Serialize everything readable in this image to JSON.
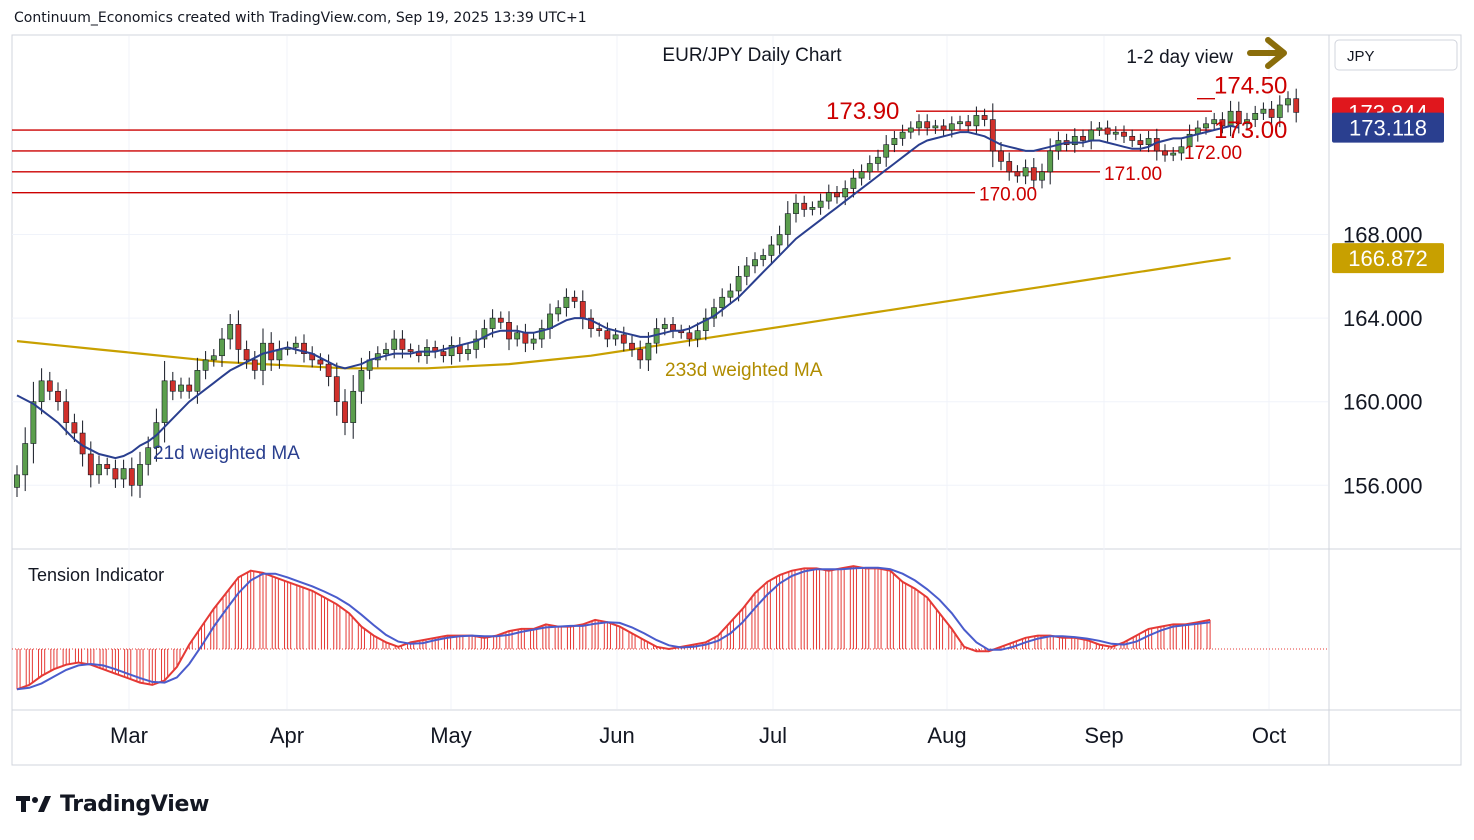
{
  "header": {
    "created_by": "Continuum_Economics created with TradingView.com, Sep 19, 2025 13:39 UTC+1"
  },
  "brand": {
    "name": "TradingView"
  },
  "colors": {
    "up": "#5b9e4d",
    "down": "#d0302b",
    "wick": "#131722",
    "level": "#cc0000",
    "ma21": "#2a3f8f",
    "ma233": "#c8a000",
    "tension_hist": "#e53935",
    "tension_line": "#e53935",
    "tension_signal": "#4a5ccc",
    "current_price_bg": "#e0171d",
    "ma21_badge_bg": "#2a3f8f",
    "ma233_badge_bg": "#c8a000"
  },
  "chart_data": {
    "type": "candlestick",
    "title": "EUR/JPY Daily Chart",
    "annotation": "1-2 day view",
    "currency": "JPY",
    "ylim": [
      153.0,
      177.5
    ],
    "y_ticks": [
      156.0,
      160.0,
      164.0,
      168.0
    ],
    "y_tick_labels": [
      "156.000",
      "160.000",
      "164.000",
      "168.000"
    ],
    "x_labels": [
      "Mar",
      "Apr",
      "May",
      "Jun",
      "Jul",
      "Aug",
      "Sep",
      "Oct"
    ],
    "levels": [
      {
        "value": 174.5,
        "label": "174.50"
      },
      {
        "value": 173.9,
        "label": "173.90"
      },
      {
        "value": 173.0,
        "label": "173.00"
      },
      {
        "value": 172.0,
        "label": "172.00"
      },
      {
        "value": 171.0,
        "label": "171.00"
      },
      {
        "value": 170.0,
        "label": "170.00"
      }
    ],
    "price_badges": [
      {
        "name": "current",
        "value": 173.844,
        "label": "173.844"
      },
      {
        "name": "ma21",
        "value": 173.118,
        "label": "173.118"
      },
      {
        "name": "ma233",
        "value": 166.872,
        "label": "166.872"
      }
    ],
    "series_labels": {
      "ma21": "21d weighted MA",
      "ma233": "233d weighted MA",
      "tension": "Tension Indicator"
    },
    "closes": [
      156.5,
      158,
      160,
      161,
      160.5,
      160,
      159,
      158.5,
      157.5,
      156.5,
      157,
      156.8,
      156.3,
      156.8,
      156,
      157,
      157.8,
      159,
      161,
      160.5,
      160.8,
      160.5,
      161.5,
      162,
      162.2,
      163,
      163.7,
      162.5,
      162,
      161.5,
      162.8,
      162,
      162.5,
      162.6,
      162.8,
      162.3,
      162,
      161.8,
      161.2,
      160,
      159,
      160.5,
      161.5,
      162,
      162.3,
      162.5,
      163,
      162.5,
      162.4,
      162.2,
      162.6,
      162.4,
      162.2,
      162.7,
      162.3,
      162.5,
      163,
      163.5,
      164,
      163.8,
      163,
      163.3,
      162.8,
      163,
      163.5,
      164.2,
      164.5,
      165,
      164.8,
      164,
      163.5,
      163.4,
      163,
      163.2,
      162.8,
      162.5,
      162,
      162.8,
      163.5,
      163.7,
      163.4,
      163.3,
      163,
      163.4,
      164,
      164.5,
      165,
      165.3,
      166,
      166.5,
      166.8,
      167,
      167.5,
      168,
      169,
      169.5,
      169.2,
      169.3,
      169.6,
      170,
      169.8,
      170.2,
      170.7,
      171,
      171.4,
      171.7,
      172.3,
      172.6,
      172.9,
      173.1,
      173.4,
      173.1,
      173.2,
      173,
      173.3,
      173.4,
      173.2,
      173.7,
      173.5,
      172,
      171.5,
      171,
      170.8,
      171.2,
      170.6,
      171,
      172,
      172.5,
      172.3,
      172.7,
      172.5,
      173,
      173.1,
      172.8,
      172.9,
      172.7,
      172.5,
      172.3,
      172.6,
      172,
      171.8,
      171.9,
      172.2,
      172.8,
      173.1,
      173.3,
      173.5,
      173.2,
      173.9,
      173.3,
      173.5,
      173.8,
      174,
      173.6,
      174.2,
      174.5,
      173.844
    ],
    "ma21": [
      160.3,
      160.1,
      159.9,
      159.6,
      159.3,
      159.0,
      158.6,
      158.2,
      157.9,
      157.7,
      157.5,
      157.4,
      157.3,
      157.4,
      157.6,
      157.9,
      158.1,
      158.4,
      158.8,
      159.2,
      159.6,
      160.0,
      160.3,
      160.6,
      160.9,
      161.2,
      161.5,
      161.7,
      161.9,
      162.1,
      162.3,
      162.4,
      162.5,
      162.6,
      162.5,
      162.4,
      162.3,
      162.1,
      161.9,
      161.7,
      161.6,
      161.7,
      161.8,
      162.0,
      162.1,
      162.2,
      162.3,
      162.3,
      162.3,
      162.4,
      162.4,
      162.4,
      162.5,
      162.6,
      162.7,
      162.8,
      162.9,
      163.1,
      163.3,
      163.4,
      163.4,
      163.4,
      163.3,
      163.3,
      163.4,
      163.5,
      163.7,
      163.9,
      164.0,
      164.0,
      163.9,
      163.7,
      163.5,
      163.4,
      163.3,
      163.2,
      163.1,
      163.1,
      163.2,
      163.3,
      163.4,
      163.4,
      163.5,
      163.7,
      163.9,
      164.1,
      164.4,
      164.7,
      165.0,
      165.4,
      165.8,
      166.2,
      166.6,
      167.0,
      167.4,
      167.8,
      168.1,
      168.4,
      168.7,
      169.0,
      169.3,
      169.6,
      169.9,
      170.2,
      170.5,
      170.8,
      171.1,
      171.4,
      171.7,
      172.0,
      172.3,
      172.5,
      172.6,
      172.7,
      172.8,
      172.9,
      172.9,
      172.8,
      172.7,
      172.5,
      172.3,
      172.2,
      172.1,
      172.0,
      172.0,
      172.1,
      172.2,
      172.3,
      172.4,
      172.4,
      172.4,
      172.5,
      172.5,
      172.4,
      172.3,
      172.2,
      172.1,
      172.1,
      172.2,
      172.4,
      172.5,
      172.6,
      172.6,
      172.7,
      172.8,
      172.9,
      173.0,
      173.1,
      173.2,
      173.118
    ],
    "ma233": [
      162.9,
      162.7,
      162.5,
      162.3,
      162.1,
      161.9,
      161.8,
      161.7,
      161.6,
      161.6,
      161.6,
      161.7,
      161.8,
      162.0,
      162.2,
      162.5,
      162.8,
      163.1,
      163.4,
      163.7,
      164.0,
      164.3,
      164.6,
      164.9,
      165.2,
      165.5,
      165.8,
      166.1,
      166.4,
      166.7,
      166.872
    ],
    "ma233_x": [
      0,
      5,
      10,
      15,
      20,
      25,
      30,
      35,
      40,
      45,
      50,
      55,
      60,
      65,
      70,
      75,
      80,
      85,
      90,
      95,
      100,
      105,
      110,
      115,
      120,
      125,
      130,
      135,
      140,
      145,
      148
    ],
    "tension": [
      -1.8,
      -1.6,
      -1.2,
      -0.9,
      -0.7,
      -0.6,
      -0.7,
      -0.9,
      -1.1,
      -1.3,
      -1.5,
      -1.6,
      -1.4,
      -0.8,
      0.2,
      1.0,
      1.8,
      2.5,
      3.2,
      3.5,
      3.4,
      3.2,
      3.0,
      2.8,
      2.6,
      2.3,
      2.0,
      1.6,
      1.0,
      0.6,
      0.3,
      0.1,
      0.3,
      0.4,
      0.5,
      0.6,
      0.6,
      0.6,
      0.5,
      0.6,
      0.8,
      0.9,
      0.9,
      1.1,
      1.0,
      1.0,
      1.1,
      1.3,
      1.2,
      1.0,
      0.7,
      0.4,
      0.1,
      0.0,
      0.1,
      0.2,
      0.3,
      0.6,
      1.2,
      1.8,
      2.5,
      3.0,
      3.3,
      3.5,
      3.6,
      3.6,
      3.5,
      3.6,
      3.7,
      3.6,
      3.6,
      3.5,
      3.0,
      2.7,
      2.3,
      1.6,
      0.9,
      0.1,
      -0.1,
      -0.1,
      0.1,
      0.3,
      0.5,
      0.6,
      0.6,
      0.5,
      0.5,
      0.4,
      0.2,
      0.1,
      0.3,
      0.6,
      0.9,
      1.0,
      1.1,
      1.1,
      1.2,
      1.3
    ],
    "tension_x_step": 1.5,
    "tension_ylim": [
      -2.5,
      4.2
    ]
  }
}
